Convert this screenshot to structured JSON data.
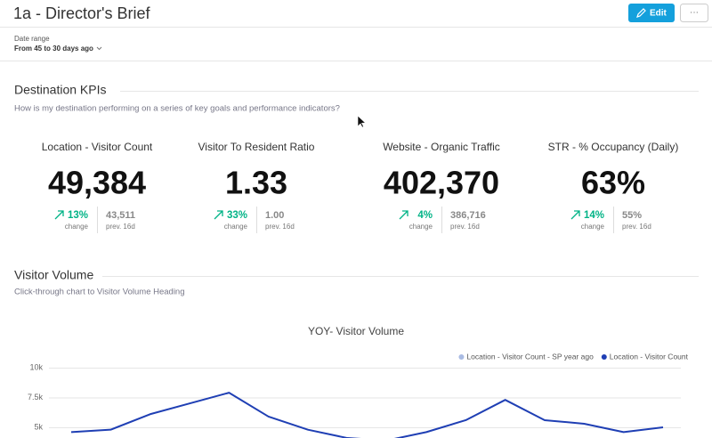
{
  "header": {
    "title": "1a - Director's Brief",
    "edit_button": "Edit",
    "more_button": "···"
  },
  "filter": {
    "label": "Date range",
    "value": "From 45 to 30 days ago"
  },
  "sections": [
    {
      "title": "Destination KPIs",
      "subtitle": "How is my destination performing on a series of key goals and performance indicators?"
    },
    {
      "title": "Visitor Volume",
      "subtitle": "Click-through chart to Visitor Volume Heading"
    }
  ],
  "kpis": [
    {
      "title": "Location - Visitor Count",
      "value": "49,384",
      "change": "13%",
      "change_label": "change",
      "previous": "43,511",
      "previous_label": "prev. 16d"
    },
    {
      "title": "Visitor To Resident Ratio",
      "value": "1.33",
      "change": "33%",
      "change_label": "change",
      "previous": "1.00",
      "previous_label": "prev. 16d"
    },
    {
      "title": "Website - Organic Traffic",
      "value": "402,370",
      "change": "4%",
      "change_label": "change",
      "previous": "386,716",
      "previous_label": "prev. 16d"
    },
    {
      "title": "STR - % Occupancy (Daily)",
      "value": "63%",
      "change": "14%",
      "change_label": "change",
      "previous": "55%",
      "previous_label": "prev. 16d"
    }
  ],
  "chart_data": {
    "type": "line",
    "title": "YOY- Visitor Volume",
    "categories": [
      null,
      null,
      null,
      null,
      null,
      null,
      null,
      null,
      null,
      null,
      null,
      null,
      null,
      null,
      null,
      null
    ],
    "series": [
      {
        "name": "Location - Visitor Count - SP year ago",
        "color": "#a9bbe3",
        "values": [
          null,
          null,
          null,
          null,
          null,
          null,
          null,
          null,
          null,
          null,
          null,
          null,
          null,
          null,
          null,
          null
        ]
      },
      {
        "name": "Location - Visitor Count",
        "color": "#1f3fb4",
        "values": [
          4600,
          4800,
          6100,
          7000,
          7900,
          5900,
          4800,
          4100,
          3900,
          4600,
          5600,
          7300,
          5600,
          5300,
          4600,
          5000
        ]
      }
    ],
    "ylim": [
      0,
      10000
    ],
    "yticks": [
      {
        "value": 10000,
        "label": "10k"
      },
      {
        "value": 7500,
        "label": "7.5k"
      },
      {
        "value": 5000,
        "label": "5k"
      }
    ],
    "grid": true,
    "legend": "top-right"
  }
}
